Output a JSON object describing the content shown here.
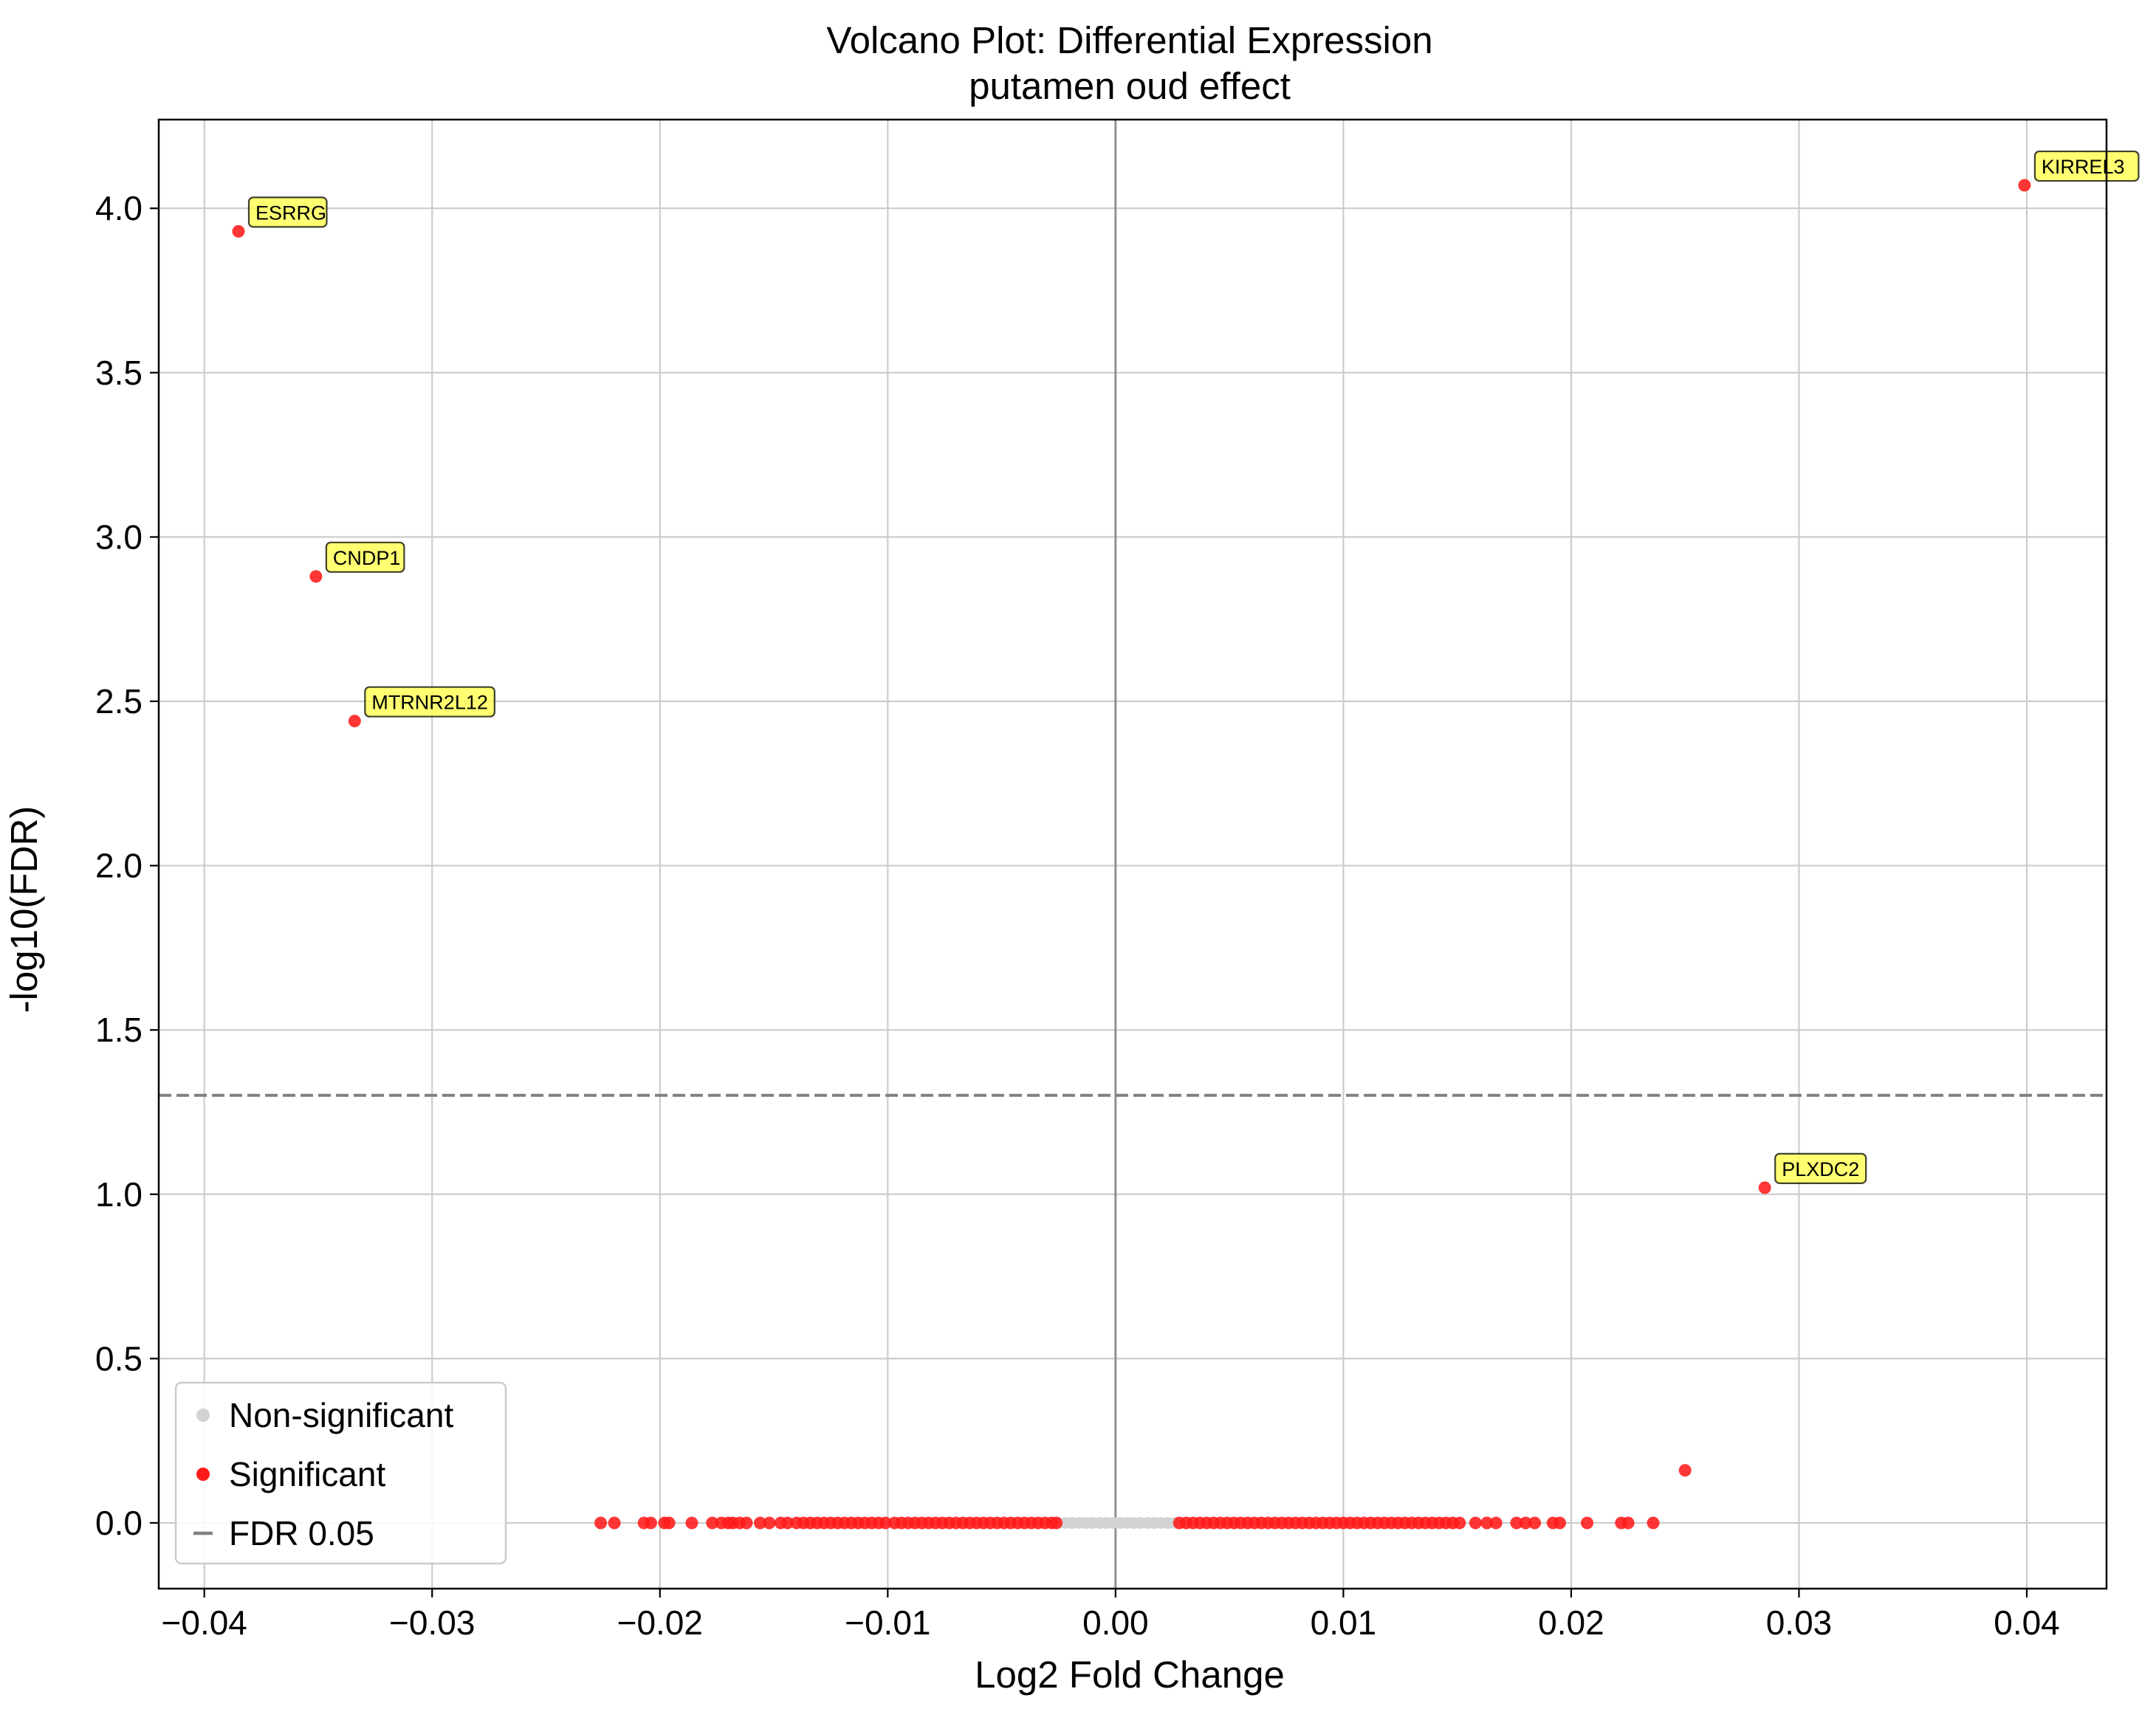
{
  "chart_data": {
    "type": "scatter",
    "title": "Volcano Plot: Differential Expression",
    "subtitle": "putamen oud effect",
    "xlabel": "Log2 Fold Change",
    "ylabel": "-log10(FDR)",
    "xlim": [
      -0.042,
      0.0435
    ],
    "ylim": [
      -0.2,
      4.27
    ],
    "xticks": [
      -0.04,
      -0.03,
      -0.02,
      -0.01,
      0.0,
      0.01,
      0.02,
      0.03,
      0.04
    ],
    "xtick_labels": [
      "−0.04",
      "−0.03",
      "−0.02",
      "−0.01",
      "0.00",
      "0.01",
      "0.02",
      "0.03",
      "0.04"
    ],
    "yticks": [
      0.0,
      0.5,
      1.0,
      1.5,
      2.0,
      2.5,
      3.0,
      3.5,
      4.0
    ],
    "ytick_labels": [
      "0.0",
      "0.5",
      "1.0",
      "1.5",
      "2.0",
      "2.5",
      "3.0",
      "3.5",
      "4.0"
    ],
    "grid": true,
    "legend_position": "bottom-left",
    "threshold_y": 1.301,
    "vline_x": 0.0,
    "colors": {
      "nonsig": "#d3d3d3",
      "sig": "#ff1a1a",
      "threshold": "#808080",
      "vline": "#808080",
      "label_box": "#ffff4d"
    },
    "series": [
      {
        "name": "Non-significant",
        "x": [
          -0.0025,
          -0.0022,
          -0.0019,
          -0.0016,
          -0.0013,
          -0.001,
          -0.0007,
          -0.0004,
          -0.0001,
          0.0002,
          0.0005,
          0.0008,
          0.0011,
          0.0014,
          0.0017,
          0.002,
          0.0023,
          0.0026
        ],
        "y": [
          0,
          0,
          0,
          0,
          0,
          0,
          0,
          0,
          0,
          0,
          0,
          0,
          0,
          0,
          0,
          0,
          0,
          0
        ]
      },
      {
        "name": "Significant",
        "x": [
          -0.0226,
          -0.022,
          -0.0207,
          -0.0204,
          -0.0198,
          -0.0196,
          -0.0186,
          -0.0177,
          -0.0173,
          -0.017,
          -0.0168,
          -0.0165,
          -0.0162,
          -0.0156,
          -0.0152,
          -0.0147,
          -0.0144,
          -0.014,
          -0.0137,
          -0.0134,
          -0.0131,
          -0.0128,
          -0.0125,
          -0.0122,
          -0.0119,
          -0.0116,
          -0.0113,
          -0.011,
          -0.0107,
          -0.0104,
          -0.0101,
          -0.0097,
          -0.0094,
          -0.0091,
          -0.0088,
          -0.0085,
          -0.0082,
          -0.0079,
          -0.0076,
          -0.0073,
          -0.007,
          -0.0067,
          -0.0064,
          -0.0061,
          -0.0058,
          -0.0055,
          -0.0052,
          -0.0049,
          -0.0046,
          -0.0043,
          -0.004,
          -0.0037,
          -0.0034,
          -0.0031,
          -0.0028,
          -0.0026,
          0.0028,
          0.0031,
          0.0034,
          0.0037,
          0.004,
          0.0043,
          0.0046,
          0.0049,
          0.0052,
          0.0055,
          0.0058,
          0.0061,
          0.0064,
          0.0067,
          0.007,
          0.0073,
          0.0076,
          0.0079,
          0.0082,
          0.0085,
          0.0088,
          0.0091,
          0.0094,
          0.0097,
          0.01,
          0.0103,
          0.0106,
          0.0109,
          0.0112,
          0.0115,
          0.0118,
          0.0121,
          0.0124,
          0.0127,
          0.013,
          0.0133,
          0.0136,
          0.0139,
          0.0142,
          0.0145,
          0.0148,
          0.0151,
          0.0158,
          0.0163,
          0.0167,
          0.0176,
          0.018,
          0.0184,
          0.0192,
          0.0195,
          0.0207,
          0.0222,
          0.0225,
          0.0236,
          0.025,
          0.0285,
          0.0399,
          -0.0385,
          -0.0351,
          -0.0334
        ],
        "y": [
          0,
          0,
          0,
          0,
          0,
          0,
          0,
          0,
          0,
          0,
          0,
          0,
          0,
          0,
          0,
          0,
          0,
          0,
          0,
          0,
          0,
          0,
          0,
          0,
          0,
          0,
          0,
          0,
          0,
          0,
          0,
          0,
          0,
          0,
          0,
          0,
          0,
          0,
          0,
          0,
          0,
          0,
          0,
          0,
          0,
          0,
          0,
          0,
          0,
          0,
          0,
          0,
          0,
          0,
          0,
          0,
          0,
          0,
          0,
          0,
          0,
          0,
          0,
          0,
          0,
          0,
          0,
          0,
          0,
          0,
          0,
          0,
          0,
          0,
          0,
          0,
          0,
          0,
          0,
          0,
          0,
          0,
          0,
          0,
          0,
          0,
          0,
          0,
          0,
          0,
          0,
          0,
          0,
          0,
          0,
          0,
          0,
          0,
          0,
          0,
          0,
          0,
          0,
          0,
          0,
          0,
          0,
          0,
          0,
          0,
          0.16,
          1.02,
          4.07,
          3.93,
          2.88,
          2.44
        ]
      }
    ],
    "annotations": [
      {
        "label": "KIRREL3",
        "x": 0.0399,
        "y": 4.07
      },
      {
        "label": "ESRRG",
        "x": -0.0385,
        "y": 3.93
      },
      {
        "label": "CNDP1",
        "x": -0.0351,
        "y": 2.88
      },
      {
        "label": "MTRNR2L12",
        "x": -0.0334,
        "y": 2.44
      },
      {
        "label": "PLXDC2",
        "x": 0.0285,
        "y": 1.02
      }
    ],
    "legend": [
      {
        "label": "Non-significant",
        "marker": "dot",
        "color": "#d3d3d3"
      },
      {
        "label": "Significant",
        "marker": "dot",
        "color": "#ff1a1a"
      },
      {
        "label": "FDR 0.05",
        "marker": "line",
        "color": "#808080"
      }
    ]
  }
}
